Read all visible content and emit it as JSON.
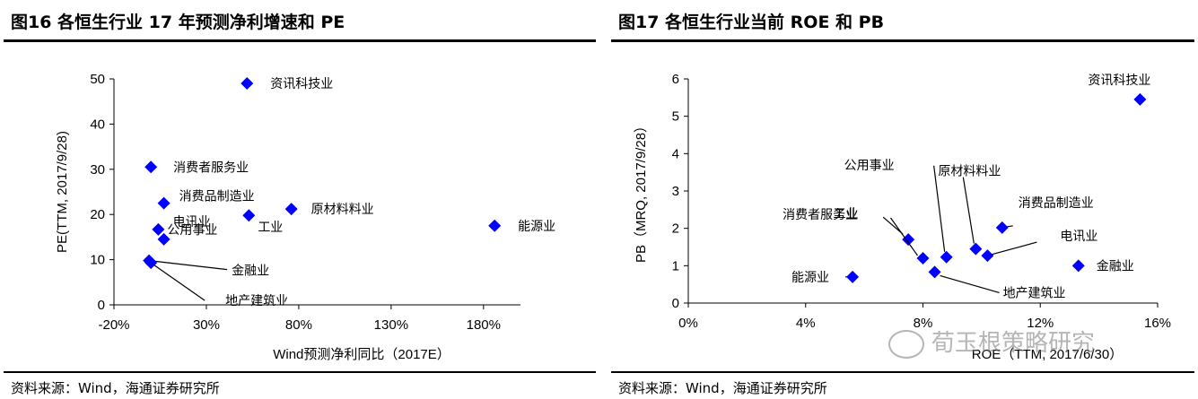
{
  "left": {
    "title": "图16 各恒生行业 17 年预测净利增速和 PE",
    "source": "资料来源：Wind，海通证券研究所"
  },
  "right": {
    "title": "图17 各恒生行业当前 ROE 和 PB",
    "source": "资料来源：Wind，海通证券研究所"
  },
  "watermark": "荀玉根策略研究",
  "colors": {
    "marker": "#0000ff",
    "axis": "#000000"
  },
  "chart_data": [
    {
      "type": "scatter",
      "title": "",
      "xlabel": "Wind预测净利同比（2017E）",
      "ylabel": "PE(TTM, 2017/9/28)",
      "xlim": [
        -20,
        200
      ],
      "ylim": [
        0,
        50
      ],
      "xticks": [
        -20,
        30,
        80,
        130,
        180
      ],
      "xtick_labels": [
        "-20%",
        "30%",
        "80%",
        "130%",
        "180%"
      ],
      "yticks": [
        0,
        10,
        20,
        30,
        40,
        50
      ],
      "ytick_labels": [
        "0",
        "10",
        "20",
        "30",
        "40",
        "50"
      ],
      "grid": false,
      "points": [
        {
          "label": "资讯科技业",
          "x": 52,
          "y": 49
        },
        {
          "label": "消费者服务业",
          "x": 0,
          "y": 30.5
        },
        {
          "label": "消费品制造业",
          "x": 7,
          "y": 22.5
        },
        {
          "label": "原材料料业",
          "x": 76,
          "y": 21.2
        },
        {
          "label": "工业",
          "x": 53,
          "y": 19.8
        },
        {
          "label": "能源业",
          "x": 186,
          "y": 17.5
        },
        {
          "label": "公用事业",
          "x": 4,
          "y": 16.7
        },
        {
          "label": "电讯业",
          "x": 7,
          "y": 14.5
        },
        {
          "label": "金融业",
          "x": -1,
          "y": 9.8
        },
        {
          "label": "地产建筑业",
          "x": 0,
          "y": 9.3
        }
      ]
    },
    {
      "type": "scatter",
      "title": "",
      "xlabel": "ROE（TTM, 2017/6/30）",
      "ylabel": "PB（MRQ, 2017/9/28）",
      "xlim": [
        0,
        16
      ],
      "ylim": [
        0,
        6
      ],
      "xticks": [
        0,
        4,
        8,
        12,
        16
      ],
      "xtick_labels": [
        "0%",
        "4%",
        "8%",
        "12%",
        "16%"
      ],
      "yticks": [
        0,
        1,
        2,
        3,
        4,
        5,
        6
      ],
      "ytick_labels": [
        "0",
        "1",
        "2",
        "3",
        "4",
        "5",
        "6"
      ],
      "grid": false,
      "points": [
        {
          "label": "资讯科技业",
          "x": 15.4,
          "y": 5.45
        },
        {
          "label": "消费品制造业",
          "x": 10.7,
          "y": 2.02
        },
        {
          "label": "消费者服务业",
          "x": 7.5,
          "y": 1.7
        },
        {
          "label": "原材料料业",
          "x": 9.8,
          "y": 1.45
        },
        {
          "label": "电讯业",
          "x": 10.2,
          "y": 1.27
        },
        {
          "label": "公用事业",
          "x": 8.8,
          "y": 1.23
        },
        {
          "label": "工业",
          "x": 8.0,
          "y": 1.2
        },
        {
          "label": "金融业",
          "x": 13.3,
          "y": 1.0
        },
        {
          "label": "地产建筑业",
          "x": 8.4,
          "y": 0.83
        },
        {
          "label": "能源业",
          "x": 5.6,
          "y": 0.7
        }
      ]
    }
  ]
}
